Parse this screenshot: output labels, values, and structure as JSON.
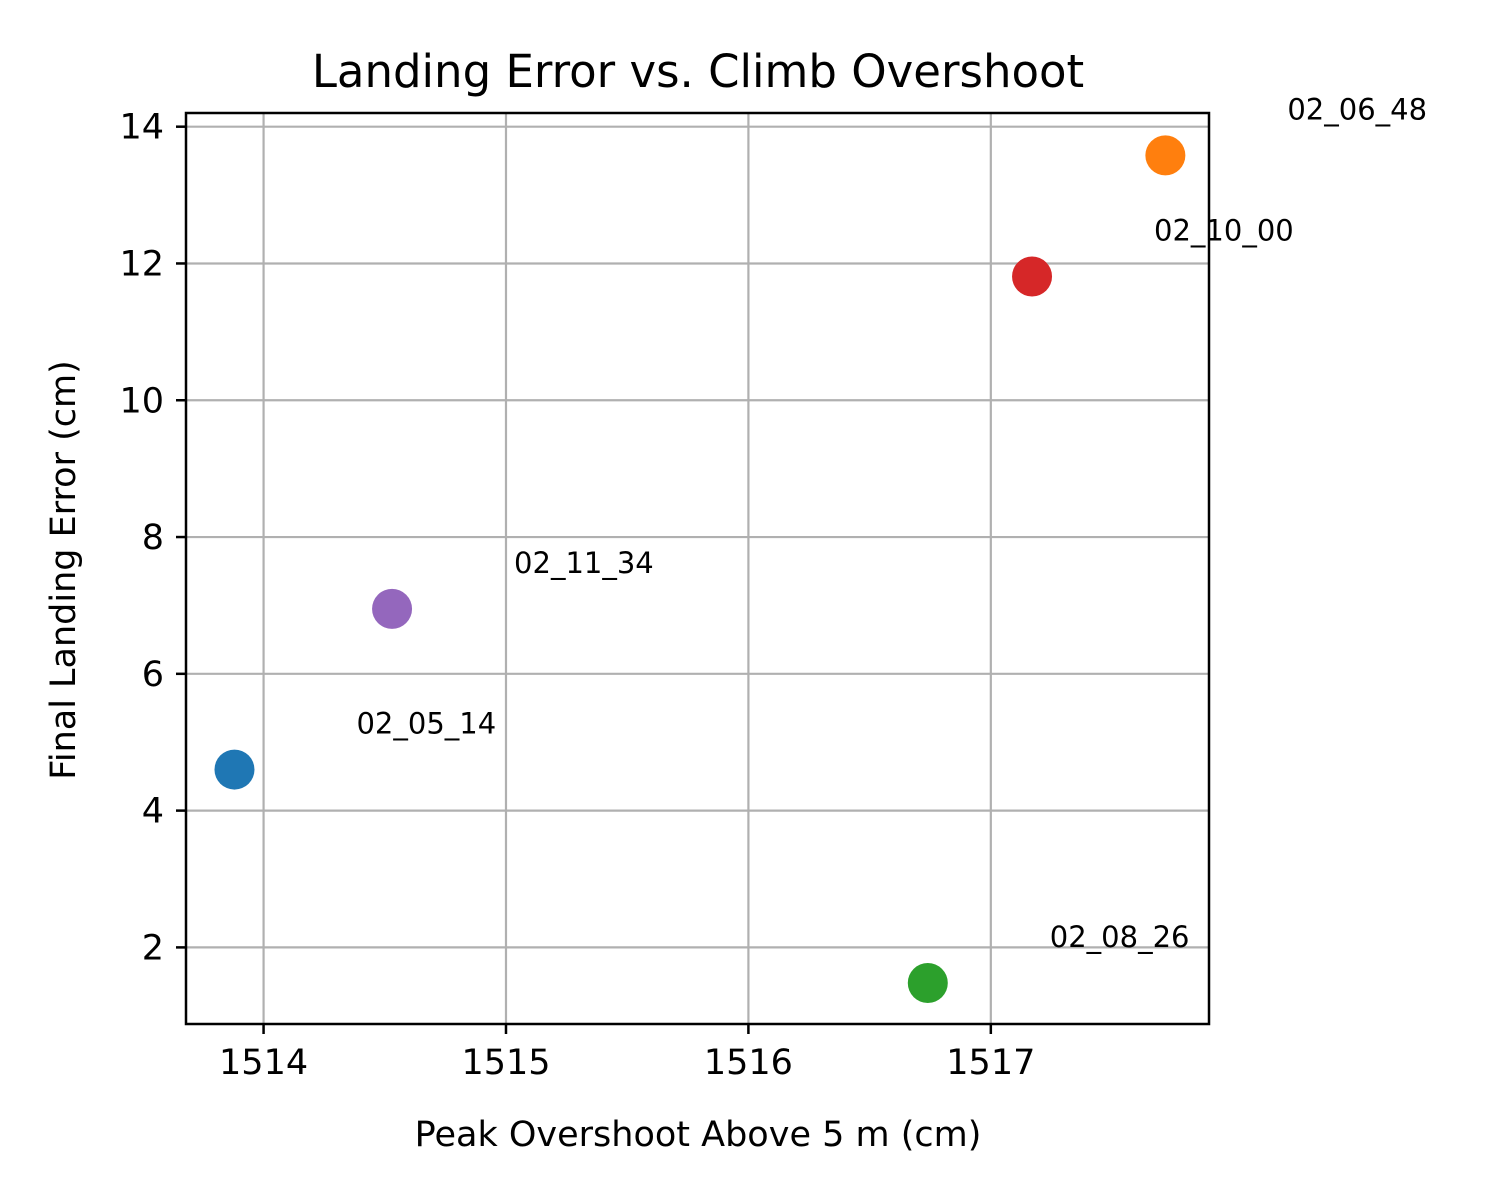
{
  "chart_data": {
    "type": "scatter",
    "title": "Landing Error vs. Climb Overshoot",
    "xlabel": "Peak Overshoot Above 5 m (cm)",
    "ylabel": "Final Landing Error (cm)",
    "xlim": [
      1513.68,
      1517.9
    ],
    "ylim": [
      0.88,
      14.2
    ],
    "xticks": [
      1514,
      1515,
      1516,
      1517
    ],
    "yticks": [
      2,
      4,
      6,
      8,
      10,
      12,
      14
    ],
    "grid": true,
    "points": [
      {
        "x": 1513.88,
        "y": 4.6,
        "color": "#1f77b4",
        "label": "02_05_14"
      },
      {
        "x": 1517.72,
        "y": 13.58,
        "color": "#ff7f0e",
        "label": "02_06_48"
      },
      {
        "x": 1516.74,
        "y": 1.48,
        "color": "#2ca02c",
        "label": "02_08_26"
      },
      {
        "x": 1517.17,
        "y": 11.81,
        "color": "#d62728",
        "label": "02_10_00"
      },
      {
        "x": 1514.53,
        "y": 6.95,
        "color": "#9467bd",
        "label": "02_11_34"
      }
    ]
  }
}
